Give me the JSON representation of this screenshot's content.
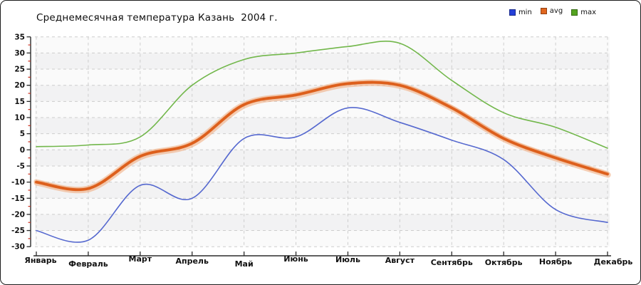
{
  "title": "Среднемесячная температура Казань  2004 г.",
  "legend": [
    {
      "label": "min",
      "marker_color": "#2540d8"
    },
    {
      "label": "avg",
      "marker_color": "#e0661f"
    },
    {
      "label": "max",
      "marker_color": "#54a31f"
    }
  ],
  "chart_data": {
    "type": "line",
    "title": "Среднемесячная температура Казань  2004 г.",
    "categories": [
      "Январь",
      "Февраль",
      "Март",
      "Апрель",
      "Май",
      "Июнь",
      "Июль",
      "Август",
      "Сентябрь",
      "Октябрь",
      "Ноябрь",
      "Декабрь"
    ],
    "series": [
      {
        "name": "min",
        "color": "#5568cf",
        "width": 1.6,
        "values": [
          -25,
          -28,
          -11,
          -15,
          3.5,
          4,
          13,
          8.5,
          3,
          -3,
          -18.5,
          -22.5
        ]
      },
      {
        "name": "avg",
        "color": "#dd5f1c",
        "halo_color": "#f0a878",
        "width": 3.8,
        "values": [
          -10,
          -12,
          -2,
          2,
          14,
          17,
          20.5,
          20,
          13,
          3.5,
          -2.5,
          -7.5
        ]
      },
      {
        "name": "max",
        "color": "#72b74b",
        "width": 1.6,
        "values": [
          1,
          1.5,
          4,
          20,
          28,
          30,
          32,
          33,
          21.5,
          11.5,
          7,
          0.5
        ]
      }
    ],
    "xlabel": "",
    "ylabel": "",
    "ylim": [
      -30,
      35
    ],
    "ytick_step": 5,
    "y_minor_tick_color": "#cc3322",
    "grid": "dashed",
    "band_colors": [
      "#fafafa",
      "#f2f2f3"
    ],
    "legend_position": "top-right",
    "smoothing": "spline"
  }
}
